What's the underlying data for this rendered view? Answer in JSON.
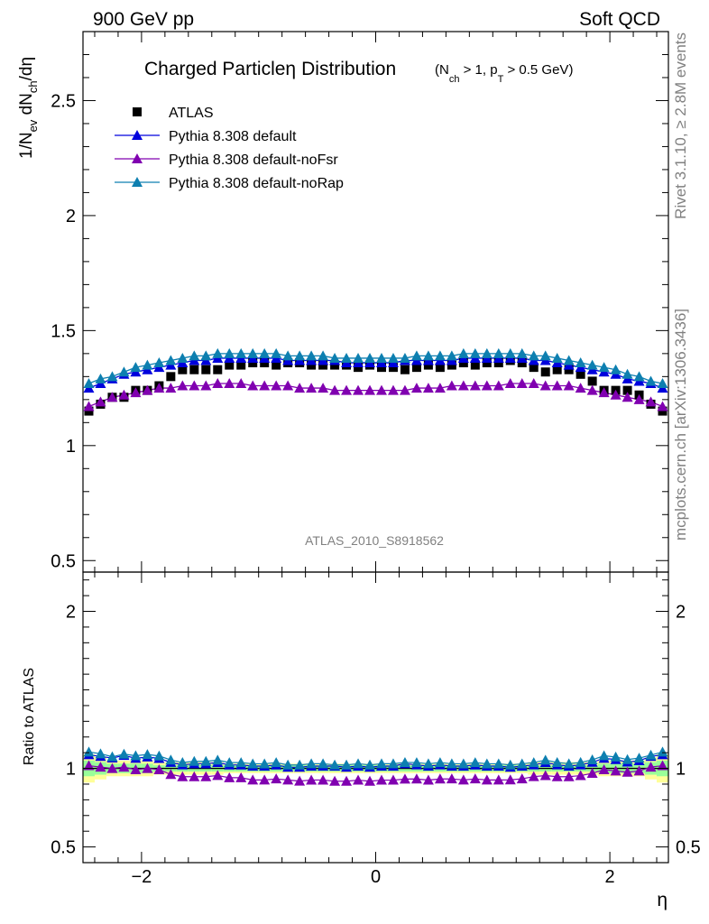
{
  "header": {
    "left": "900 GeV pp",
    "right": "Soft QCD"
  },
  "side_labels": {
    "rivet": "Rivet 3.1.10, ≥ 2.8M events",
    "mcplots": "mcplots.cern.ch [arXiv:1306.3436]"
  },
  "analysis_label": "ATLAS_2010_S8918562",
  "colors": {
    "atlas": "#000000",
    "default": "#0000dd",
    "noFsr": "#8000b0",
    "noRap": "#0d7fb0",
    "band_outer": "#ffff99",
    "band_inner": "#99ff99"
  },
  "chart_data": [
    {
      "type": "scatter",
      "title": "Charged Particle η Distribution",
      "title_suffix": "(N_ch > 1, p_T > 0.5 GeV)",
      "xlabel": "η",
      "ylabel": "1/N_ev dN_ch/dη",
      "xlim": [
        -2.5,
        2.5
      ],
      "ylim": [
        0.45,
        2.8
      ],
      "yticks": [
        0.5,
        1,
        1.5,
        2,
        2.5
      ],
      "ytick_labels": [
        "0.5",
        "1",
        "1.5",
        "2",
        "2.5"
      ],
      "legend_position": "top-left",
      "x": [
        -2.45,
        -2.35,
        -2.25,
        -2.15,
        -2.05,
        -1.95,
        -1.85,
        -1.75,
        -1.65,
        -1.55,
        -1.45,
        -1.35,
        -1.25,
        -1.15,
        -1.05,
        -0.95,
        -0.85,
        -0.75,
        -0.65,
        -0.55,
        -0.45,
        -0.35,
        -0.25,
        -0.15,
        -0.05,
        0.05,
        0.15,
        0.25,
        0.35,
        0.45,
        0.55,
        0.65,
        0.75,
        0.85,
        0.95,
        1.05,
        1.15,
        1.25,
        1.35,
        1.45,
        1.55,
        1.65,
        1.75,
        1.85,
        1.95,
        2.05,
        2.15,
        2.25,
        2.35,
        2.45
      ],
      "series": [
        {
          "name": "ATLAS",
          "key": "atlas",
          "marker": "square",
          "values": [
            1.15,
            1.18,
            1.21,
            1.21,
            1.24,
            1.24,
            1.26,
            1.3,
            1.33,
            1.33,
            1.33,
            1.33,
            1.35,
            1.35,
            1.36,
            1.36,
            1.35,
            1.36,
            1.36,
            1.35,
            1.35,
            1.35,
            1.35,
            1.34,
            1.35,
            1.34,
            1.34,
            1.33,
            1.34,
            1.35,
            1.34,
            1.35,
            1.36,
            1.35,
            1.36,
            1.36,
            1.37,
            1.36,
            1.34,
            1.32,
            1.33,
            1.33,
            1.31,
            1.28,
            1.24,
            1.24,
            1.24,
            1.22,
            1.18,
            1.15
          ]
        },
        {
          "name": "Pythia 8.308 default",
          "key": "default",
          "marker": "triangle",
          "values": [
            1.25,
            1.27,
            1.29,
            1.31,
            1.32,
            1.33,
            1.34,
            1.35,
            1.36,
            1.37,
            1.37,
            1.38,
            1.38,
            1.38,
            1.38,
            1.38,
            1.38,
            1.37,
            1.37,
            1.37,
            1.37,
            1.37,
            1.36,
            1.36,
            1.36,
            1.36,
            1.36,
            1.37,
            1.37,
            1.37,
            1.37,
            1.37,
            1.38,
            1.38,
            1.38,
            1.38,
            1.38,
            1.38,
            1.37,
            1.37,
            1.36,
            1.35,
            1.34,
            1.33,
            1.32,
            1.31,
            1.29,
            1.28,
            1.27,
            1.25
          ]
        },
        {
          "name": "Pythia 8.308 default-noFsr",
          "key": "noFsr",
          "marker": "triangle",
          "values": [
            1.17,
            1.19,
            1.21,
            1.22,
            1.23,
            1.24,
            1.25,
            1.25,
            1.26,
            1.26,
            1.26,
            1.27,
            1.27,
            1.27,
            1.26,
            1.26,
            1.26,
            1.26,
            1.25,
            1.25,
            1.25,
            1.24,
            1.24,
            1.24,
            1.24,
            1.24,
            1.24,
            1.24,
            1.25,
            1.25,
            1.25,
            1.26,
            1.26,
            1.26,
            1.26,
            1.26,
            1.27,
            1.27,
            1.27,
            1.26,
            1.26,
            1.26,
            1.25,
            1.24,
            1.23,
            1.22,
            1.21,
            1.2,
            1.19,
            1.17
          ]
        },
        {
          "name": "Pythia 8.308 default-noRap",
          "key": "noRap",
          "marker": "triangle",
          "values": [
            1.27,
            1.29,
            1.3,
            1.32,
            1.34,
            1.35,
            1.36,
            1.37,
            1.38,
            1.39,
            1.39,
            1.4,
            1.4,
            1.4,
            1.4,
            1.4,
            1.4,
            1.39,
            1.39,
            1.39,
            1.39,
            1.38,
            1.38,
            1.38,
            1.38,
            1.38,
            1.38,
            1.38,
            1.39,
            1.39,
            1.39,
            1.39,
            1.4,
            1.4,
            1.4,
            1.4,
            1.4,
            1.4,
            1.39,
            1.39,
            1.38,
            1.37,
            1.36,
            1.35,
            1.34,
            1.33,
            1.31,
            1.3,
            1.28,
            1.27
          ]
        }
      ]
    },
    {
      "type": "scatter",
      "xlabel": "η",
      "ylabel": "Ratio to ATLAS",
      "xlim": [
        -2.5,
        2.5
      ],
      "ylim": [
        0.4,
        2.25
      ],
      "xticks": [
        -2,
        0,
        2
      ],
      "xtick_labels": [
        "−2",
        "0",
        "2"
      ],
      "yticks": [
        0.5,
        1,
        2
      ],
      "ytick_labels": [
        "0.5",
        "1",
        "2"
      ],
      "reference_line": 1,
      "band_outer_half_width": [
        0.09,
        0.07,
        0.05,
        0.05,
        0.05,
        0.05,
        0.04,
        0.04,
        0.04,
        0.04,
        0.04,
        0.04,
        0.03,
        0.03,
        0.03,
        0.03,
        0.03,
        0.03,
        0.03,
        0.03,
        0.03,
        0.03,
        0.03,
        0.03,
        0.03,
        0.03,
        0.03,
        0.03,
        0.03,
        0.03,
        0.03,
        0.03,
        0.03,
        0.03,
        0.03,
        0.03,
        0.03,
        0.03,
        0.04,
        0.04,
        0.04,
        0.04,
        0.04,
        0.04,
        0.05,
        0.05,
        0.05,
        0.05,
        0.07,
        0.09
      ],
      "band_inner_half_width": [
        0.05,
        0.04,
        0.03,
        0.03,
        0.03,
        0.03,
        0.02,
        0.02,
        0.02,
        0.02,
        0.02,
        0.02,
        0.02,
        0.02,
        0.02,
        0.02,
        0.02,
        0.02,
        0.02,
        0.02,
        0.02,
        0.02,
        0.02,
        0.02,
        0.02,
        0.02,
        0.02,
        0.02,
        0.02,
        0.02,
        0.02,
        0.02,
        0.02,
        0.02,
        0.02,
        0.02,
        0.02,
        0.02,
        0.02,
        0.02,
        0.02,
        0.02,
        0.02,
        0.02,
        0.03,
        0.03,
        0.03,
        0.03,
        0.04,
        0.05
      ]
    }
  ]
}
